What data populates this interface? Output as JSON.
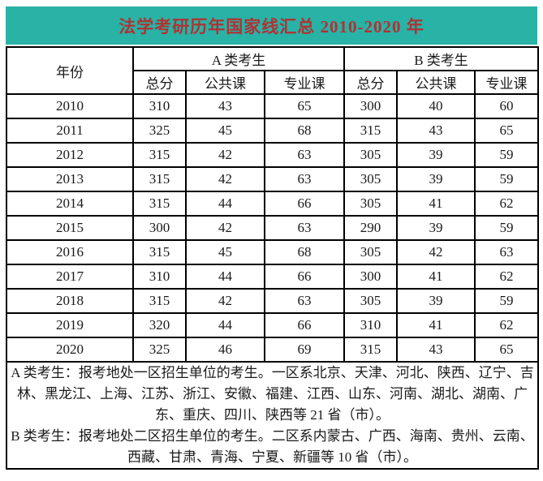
{
  "title": "法学考研历年国家线汇总 2010-2020 年",
  "colors": {
    "title_bar_bg": "#29b2a6",
    "title_text": "#b03232",
    "table_border": "#000000",
    "cell_text": "#1a1a1a"
  },
  "table": {
    "year_header": "年份",
    "group_headers": [
      "A 类考生",
      "B 类考生"
    ],
    "sub_headers": [
      "总分",
      "公共课",
      "专业课"
    ],
    "rows": [
      {
        "year": "2010",
        "a": [
          "310",
          "43",
          "65"
        ],
        "b": [
          "300",
          "40",
          "60"
        ]
      },
      {
        "year": "2011",
        "a": [
          "325",
          "45",
          "68"
        ],
        "b": [
          "315",
          "43",
          "65"
        ]
      },
      {
        "year": "2012",
        "a": [
          "315",
          "42",
          "63"
        ],
        "b": [
          "305",
          "39",
          "59"
        ]
      },
      {
        "year": "2013",
        "a": [
          "315",
          "42",
          "63"
        ],
        "b": [
          "305",
          "39",
          "59"
        ]
      },
      {
        "year": "2014",
        "a": [
          "315",
          "44",
          "66"
        ],
        "b": [
          "305",
          "41",
          "62"
        ]
      },
      {
        "year": "2015",
        "a": [
          "300",
          "42",
          "63"
        ],
        "b": [
          "290",
          "39",
          "59"
        ]
      },
      {
        "year": "2016",
        "a": [
          "315",
          "45",
          "68"
        ],
        "b": [
          "305",
          "42",
          "63"
        ]
      },
      {
        "year": "2017",
        "a": [
          "310",
          "44",
          "66"
        ],
        "b": [
          "300",
          "41",
          "62"
        ]
      },
      {
        "year": "2018",
        "a": [
          "315",
          "42",
          "63"
        ],
        "b": [
          "305",
          "39",
          "59"
        ]
      },
      {
        "year": "2019",
        "a": [
          "320",
          "44",
          "66"
        ],
        "b": [
          "310",
          "41",
          "62"
        ]
      },
      {
        "year": "2020",
        "a": [
          "325",
          "46",
          "69"
        ],
        "b": [
          "315",
          "43",
          "65"
        ]
      }
    ]
  },
  "notes": [
    "A 类考生：报考地处一区招生单位的考生。一区系北京、天津、河北、陕西、辽宁、吉林、黑龙江、上海、江苏、浙江、安徽、福建、江西、山东、河南、湖北、湖南、广东、重庆、四川、陕西等 21 省（市）。",
    "B 类考生：报考地处二区招生单位的考生。二区系内蒙古、广西、海南、贵州、云南、西藏、甘肃、青海、宁夏、新疆等 10 省（市）。"
  ]
}
